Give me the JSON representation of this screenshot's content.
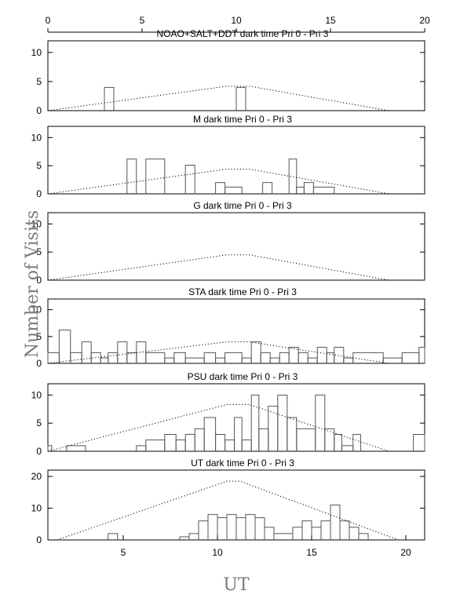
{
  "figure": {
    "y_axis_label": "Number of Visits",
    "x_axis_label": "UT",
    "top_axis": {
      "ticks": [
        0,
        5,
        10,
        15,
        20
      ],
      "range": [
        0,
        20
      ]
    }
  },
  "chart_data": [
    {
      "type": "area",
      "title": "NOAO+SALT+DDT dark time Pri 0 - Pri 3",
      "xlim": [
        0,
        20
      ],
      "ylim": [
        0,
        12
      ],
      "yticks": [
        0,
        5,
        10
      ],
      "histogram": {
        "bin_start": 0,
        "bin_width": 0.5,
        "counts": [
          0,
          0,
          0,
          0,
          0,
          0,
          4,
          0,
          0,
          0,
          0,
          0,
          0,
          0,
          0,
          0,
          0,
          0,
          0,
          0,
          4,
          0,
          0,
          0,
          0,
          0,
          0,
          0,
          0,
          0,
          0,
          0,
          0,
          0,
          0,
          0,
          0,
          0,
          0,
          0
        ]
      },
      "envelope": [
        [
          0,
          0
        ],
        [
          9.5,
          4.2
        ],
        [
          10.7,
          4.2
        ],
        [
          18.1,
          0
        ]
      ]
    },
    {
      "type": "area",
      "title": "M    dark time Pri 0 - Pri 3",
      "xlim": [
        0,
        20
      ],
      "ylim": [
        0,
        12
      ],
      "yticks": [
        0,
        5,
        10
      ],
      "histogram": {
        "bin_start": 0,
        "bin_width": 0.5,
        "counts": [
          0,
          0,
          0,
          0,
          0,
          0,
          0,
          0,
          0,
          0,
          0,
          0,
          0,
          0,
          0,
          0,
          0,
          0,
          0,
          0,
          0,
          0,
          0,
          0,
          0,
          0,
          0,
          0,
          0,
          0,
          0,
          0,
          0,
          0,
          0,
          0,
          0,
          0,
          0,
          0
        ]
      },
      "segments": [
        {
          "x0": 4.2,
          "x1": 4.7,
          "y": 6.2
        },
        {
          "x0": 5.2,
          "x1": 6.2,
          "y": 6.2
        },
        {
          "x0": 7.3,
          "x1": 7.8,
          "y": 5.1
        },
        {
          "x0": 8.9,
          "x1": 9.4,
          "y": 2.0
        },
        {
          "x0": 9.4,
          "x1": 10.3,
          "y": 1.2
        },
        {
          "x0": 11.4,
          "x1": 11.9,
          "y": 2.0
        },
        {
          "x0": 12.8,
          "x1": 13.2,
          "y": 6.2
        },
        {
          "x0": 13.2,
          "x1": 13.6,
          "y": 1.2
        },
        {
          "x0": 13.6,
          "x1": 14.1,
          "y": 2.0
        },
        {
          "x0": 14.1,
          "x1": 15.2,
          "y": 1.2
        }
      ],
      "envelope": [
        [
          0,
          0
        ],
        [
          9.5,
          4.4
        ],
        [
          10.7,
          4.4
        ],
        [
          18.1,
          0
        ]
      ]
    },
    {
      "type": "area",
      "title": "G    dark time Pri 0 - Pri 3",
      "xlim": [
        0,
        20
      ],
      "ylim": [
        0,
        12
      ],
      "yticks": [
        0,
        5,
        10
      ],
      "segments": [],
      "envelope": [
        [
          0,
          0
        ],
        [
          9.5,
          4.5
        ],
        [
          10.7,
          4.5
        ],
        [
          18.1,
          0
        ]
      ]
    },
    {
      "type": "area",
      "title": "STA    dark time Pri 0 - Pri 3",
      "xlim": [
        0,
        20
      ],
      "ylim": [
        0,
        12
      ],
      "yticks": [
        0,
        5,
        10
      ],
      "segments": [
        {
          "x0": 0.0,
          "x1": 0.6,
          "y": 2.0
        },
        {
          "x0": 0.6,
          "x1": 1.2,
          "y": 6.2
        },
        {
          "x0": 1.2,
          "x1": 1.8,
          "y": 2.0
        },
        {
          "x0": 1.8,
          "x1": 2.3,
          "y": 4.0
        },
        {
          "x0": 2.3,
          "x1": 2.8,
          "y": 2.0
        },
        {
          "x0": 2.8,
          "x1": 3.2,
          "y": 1.0
        },
        {
          "x0": 3.2,
          "x1": 3.7,
          "y": 2.0
        },
        {
          "x0": 3.7,
          "x1": 4.2,
          "y": 4.0
        },
        {
          "x0": 4.2,
          "x1": 4.7,
          "y": 2.0
        },
        {
          "x0": 4.7,
          "x1": 5.2,
          "y": 4.0
        },
        {
          "x0": 5.2,
          "x1": 6.2,
          "y": 2.0
        },
        {
          "x0": 6.2,
          "x1": 6.7,
          "y": 1.0
        },
        {
          "x0": 6.7,
          "x1": 7.3,
          "y": 2.0
        },
        {
          "x0": 7.3,
          "x1": 8.3,
          "y": 1.0
        },
        {
          "x0": 8.3,
          "x1": 8.9,
          "y": 2.0
        },
        {
          "x0": 8.9,
          "x1": 9.4,
          "y": 1.0
        },
        {
          "x0": 9.4,
          "x1": 10.3,
          "y": 2.0
        },
        {
          "x0": 10.3,
          "x1": 10.8,
          "y": 1.0
        },
        {
          "x0": 10.8,
          "x1": 11.3,
          "y": 4.0
        },
        {
          "x0": 11.3,
          "x1": 11.8,
          "y": 2.0
        },
        {
          "x0": 11.8,
          "x1": 12.3,
          "y": 1.0
        },
        {
          "x0": 12.3,
          "x1": 12.8,
          "y": 2.0
        },
        {
          "x0": 12.8,
          "x1": 13.3,
          "y": 3.0
        },
        {
          "x0": 13.3,
          "x1": 13.8,
          "y": 2.0
        },
        {
          "x0": 13.8,
          "x1": 14.3,
          "y": 1.0
        },
        {
          "x0": 14.3,
          "x1": 14.8,
          "y": 3.0
        },
        {
          "x0": 14.8,
          "x1": 15.2,
          "y": 2.0
        },
        {
          "x0": 15.2,
          "x1": 15.7,
          "y": 3.0
        },
        {
          "x0": 15.7,
          "x1": 16.2,
          "y": 1.0
        },
        {
          "x0": 16.2,
          "x1": 17.8,
          "y": 2.0
        },
        {
          "x0": 17.8,
          "x1": 18.8,
          "y": 1.0
        },
        {
          "x0": 18.8,
          "x1": 19.7,
          "y": 2.0
        },
        {
          "x0": 19.7,
          "x1": 20.0,
          "y": 3.0
        }
      ],
      "envelope": [
        [
          0,
          0
        ],
        [
          9.5,
          4.0
        ],
        [
          10.7,
          4.0
        ],
        [
          18.1,
          0
        ]
      ]
    },
    {
      "type": "area",
      "title": "PSU    dark time Pri 0 - Pri 3",
      "xlim": [
        0,
        20
      ],
      "ylim": [
        0,
        12
      ],
      "yticks": [
        0,
        5,
        10
      ],
      "segments": [
        {
          "x0": 0.0,
          "x1": 0.2,
          "y": 1.0
        },
        {
          "x0": 1.0,
          "x1": 2.0,
          "y": 1.0
        },
        {
          "x0": 4.7,
          "x1": 5.2,
          "y": 1.0
        },
        {
          "x0": 5.2,
          "x1": 6.2,
          "y": 2.0
        },
        {
          "x0": 6.2,
          "x1": 6.8,
          "y": 3.0
        },
        {
          "x0": 6.8,
          "x1": 7.3,
          "y": 2.0
        },
        {
          "x0": 7.3,
          "x1": 7.8,
          "y": 3.0
        },
        {
          "x0": 7.8,
          "x1": 8.3,
          "y": 4.0
        },
        {
          "x0": 8.3,
          "x1": 8.9,
          "y": 6.0
        },
        {
          "x0": 8.9,
          "x1": 9.4,
          "y": 3.0
        },
        {
          "x0": 9.4,
          "x1": 9.9,
          "y": 2.0
        },
        {
          "x0": 9.9,
          "x1": 10.3,
          "y": 6.0
        },
        {
          "x0": 10.3,
          "x1": 10.8,
          "y": 2.0
        },
        {
          "x0": 10.8,
          "x1": 11.2,
          "y": 10.0
        },
        {
          "x0": 11.2,
          "x1": 11.7,
          "y": 4.0
        },
        {
          "x0": 11.7,
          "x1": 12.2,
          "y": 8.0
        },
        {
          "x0": 12.2,
          "x1": 12.7,
          "y": 10.0
        },
        {
          "x0": 12.7,
          "x1": 13.2,
          "y": 6.0
        },
        {
          "x0": 13.2,
          "x1": 14.2,
          "y": 4.0
        },
        {
          "x0": 14.2,
          "x1": 14.7,
          "y": 10.0
        },
        {
          "x0": 14.7,
          "x1": 15.2,
          "y": 4.0
        },
        {
          "x0": 15.2,
          "x1": 15.6,
          "y": 3.0
        },
        {
          "x0": 15.6,
          "x1": 16.2,
          "y": 1.0
        },
        {
          "x0": 16.2,
          "x1": 16.6,
          "y": 3.0
        },
        {
          "x0": 19.4,
          "x1": 20.0,
          "y": 3.0
        }
      ],
      "envelope": [
        [
          0,
          0
        ],
        [
          9.5,
          8.3
        ],
        [
          10.7,
          8.3
        ],
        [
          18.1,
          0
        ]
      ]
    },
    {
      "type": "area",
      "title": "UT    dark time Pri 0 - Pri 3",
      "xlim": [
        1,
        21
      ],
      "ylim": [
        0,
        22
      ],
      "yticks": [
        0,
        10,
        20
      ],
      "xticks": [
        5,
        10,
        15,
        20
      ],
      "segments": [
        {
          "x0": 4.2,
          "x1": 4.7,
          "y": 2.0
        },
        {
          "x0": 8.0,
          "x1": 8.5,
          "y": 1.0
        },
        {
          "x0": 8.5,
          "x1": 9.0,
          "y": 2.0
        },
        {
          "x0": 9.0,
          "x1": 9.5,
          "y": 6.0
        },
        {
          "x0": 9.5,
          "x1": 10.0,
          "y": 8.0
        },
        {
          "x0": 10.0,
          "x1": 10.5,
          "y": 7.0
        },
        {
          "x0": 10.5,
          "x1": 11.0,
          "y": 8.0
        },
        {
          "x0": 11.0,
          "x1": 11.5,
          "y": 7.0
        },
        {
          "x0": 11.5,
          "x1": 12.0,
          "y": 8.0
        },
        {
          "x0": 12.0,
          "x1": 12.5,
          "y": 7.0
        },
        {
          "x0": 12.5,
          "x1": 13.0,
          "y": 4.0
        },
        {
          "x0": 13.0,
          "x1": 14.0,
          "y": 2.0
        },
        {
          "x0": 14.0,
          "x1": 14.5,
          "y": 4.0
        },
        {
          "x0": 14.5,
          "x1": 15.0,
          "y": 6.0
        },
        {
          "x0": 15.0,
          "x1": 15.5,
          "y": 4.0
        },
        {
          "x0": 15.5,
          "x1": 16.0,
          "y": 6.0
        },
        {
          "x0": 16.0,
          "x1": 16.5,
          "y": 11.0
        },
        {
          "x0": 16.5,
          "x1": 17.0,
          "y": 6.0
        },
        {
          "x0": 17.0,
          "x1": 17.5,
          "y": 4.0
        },
        {
          "x0": 17.5,
          "x1": 18.0,
          "y": 2.0
        }
      ],
      "envelope": [
        [
          1.5,
          0
        ],
        [
          10.5,
          18.5
        ],
        [
          11.2,
          18.5
        ],
        [
          19.6,
          0
        ]
      ]
    }
  ]
}
